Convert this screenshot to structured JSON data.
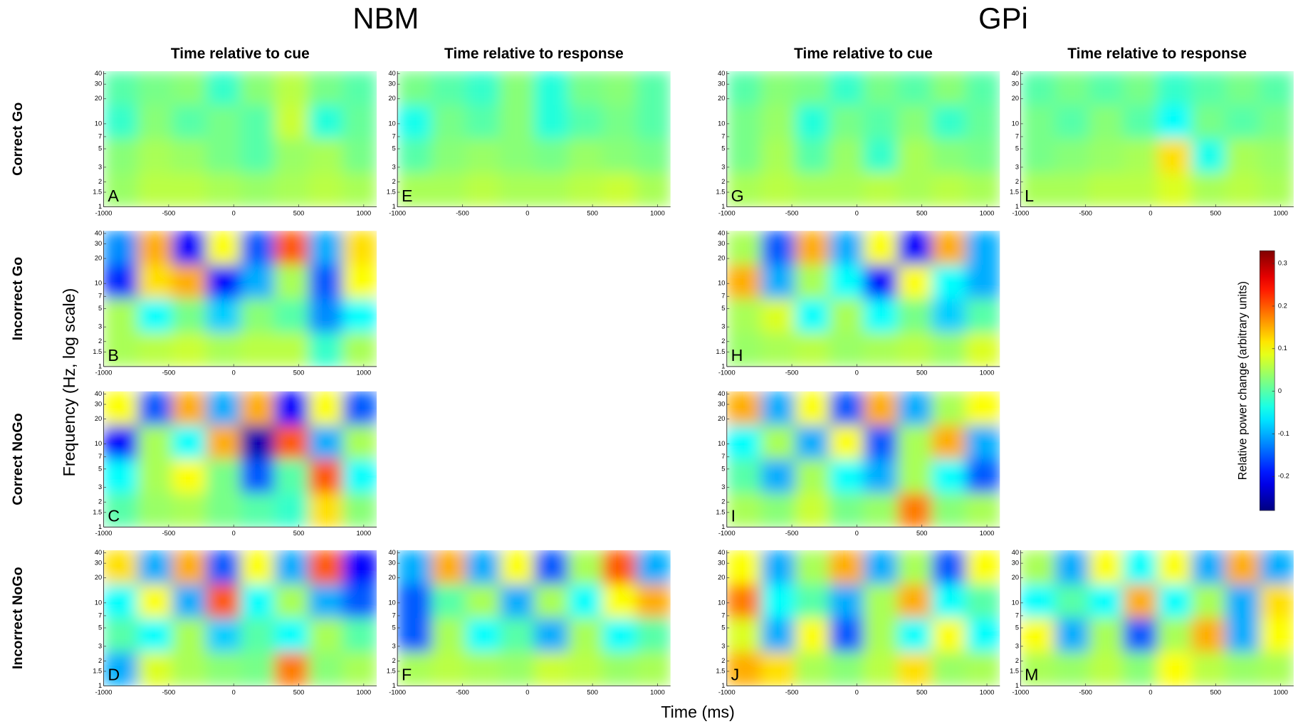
{
  "chart_data": {
    "type": "heatmap-grid",
    "groups": [
      {
        "name": "NBM",
        "columns": [
          {
            "title": "Time relative to cue",
            "panels": [
              {
                "label": "A",
                "values": [
                  [
                    0,
                    0.02,
                    0.03,
                    -0.02,
                    0.03,
                    0.06,
                    0.02,
                    0
                  ],
                  [
                    -0.02,
                    0.03,
                    0,
                    0.02,
                    0,
                    0.07,
                    -0.03,
                    0.01
                  ],
                  [
                    0.03,
                    0.05,
                    0.04,
                    0.02,
                    0,
                    0.04,
                    0.05,
                    0.02
                  ],
                  [
                    0.04,
                    0.06,
                    0.06,
                    0.05,
                    0.04,
                    0.05,
                    0.06,
                    0.05
                  ]
                ]
              },
              {
                "label": "B",
                "values": [
                  [
                    -0.12,
                    0.15,
                    -0.2,
                    0.1,
                    -0.15,
                    0.2,
                    -0.1,
                    0.12
                  ],
                  [
                    -0.18,
                    0.12,
                    0.15,
                    -0.2,
                    -0.1,
                    0.05,
                    -0.15,
                    0.1
                  ],
                  [
                    0.05,
                    -0.05,
                    0.02,
                    -0.08,
                    0.03,
                    0,
                    -0.12,
                    -0.05
                  ],
                  [
                    0.05,
                    0.06,
                    0.07,
                    0.05,
                    0.06,
                    0.06,
                    -0.02,
                    0.05
                  ]
                ]
              },
              {
                "label": "C",
                "values": [
                  [
                    0.1,
                    -0.15,
                    0.15,
                    -0.1,
                    0.15,
                    -0.2,
                    0.1,
                    -0.15
                  ],
                  [
                    -0.2,
                    0.05,
                    -0.05,
                    0.15,
                    -0.25,
                    0.2,
                    -0.1,
                    0.05
                  ],
                  [
                    -0.05,
                    0.05,
                    0.1,
                    0.02,
                    -0.15,
                    0,
                    0.2,
                    -0.05
                  ],
                  [
                    0,
                    0.04,
                    0.05,
                    0.02,
                    0,
                    -0.02,
                    0.12,
                    0.03
                  ]
                ]
              },
              {
                "label": "D",
                "values": [
                  [
                    0.12,
                    -0.1,
                    0.15,
                    -0.15,
                    0.1,
                    -0.1,
                    0.2,
                    -0.2
                  ],
                  [
                    -0.05,
                    0.1,
                    -0.1,
                    0.2,
                    -0.05,
                    0.05,
                    -0.1,
                    -0.15
                  ],
                  [
                    0,
                    -0.05,
                    0.05,
                    -0.08,
                    0,
                    -0.05,
                    0.05,
                    0
                  ],
                  [
                    -0.1,
                    0.08,
                    0.05,
                    0.03,
                    0.02,
                    0.18,
                    0.03,
                    0.05
                  ]
                ]
              }
            ]
          },
          {
            "title": "Time relative to response",
            "panels": [
              {
                "label": "E",
                "values": [
                  [
                    0.02,
                    0,
                    -0.02,
                    0.03,
                    -0.03,
                    0.02,
                    0.03,
                    0
                  ],
                  [
                    -0.04,
                    0.02,
                    0,
                    0.03,
                    -0.03,
                    0,
                    0.02,
                    0
                  ],
                  [
                    0,
                    0.03,
                    0.04,
                    0.03,
                    0.02,
                    0.04,
                    0.03,
                    0.02
                  ],
                  [
                    0.05,
                    0.05,
                    0.06,
                    0.05,
                    0.05,
                    0.06,
                    0.07,
                    0.05
                  ]
                ]
              },
              null,
              null,
              {
                "label": "F",
                "values": [
                  [
                    -0.1,
                    0.15,
                    -0.1,
                    0.1,
                    -0.15,
                    0.05,
                    0.2,
                    -0.1
                  ],
                  [
                    -0.15,
                    0,
                    0.05,
                    -0.1,
                    0.05,
                    -0.05,
                    0.1,
                    0.15
                  ],
                  [
                    -0.15,
                    0.05,
                    -0.05,
                    0,
                    -0.1,
                    0.05,
                    -0.05,
                    0
                  ],
                  [
                    0.05,
                    0.06,
                    0.05,
                    0.04,
                    0.07,
                    0.06,
                    0.04,
                    0.05
                  ]
                ]
              }
            ]
          }
        ]
      },
      {
        "name": "GPi",
        "columns": [
          {
            "title": "Time relative to cue",
            "panels": [
              {
                "label": "G",
                "values": [
                  [
                    0,
                    0.03,
                    0.02,
                    -0.02,
                    0.02,
                    0,
                    0.03,
                    0
                  ],
                  [
                    0.02,
                    0.04,
                    -0.03,
                    0.02,
                    0,
                    0.03,
                    -0.02,
                    0.01
                  ],
                  [
                    0.02,
                    0.05,
                    0,
                    0.04,
                    -0.02,
                    0.05,
                    0.03,
                    0.02
                  ],
                  [
                    0.05,
                    0.06,
                    0.05,
                    0.05,
                    0.06,
                    0.05,
                    0.06,
                    0.05
                  ]
                ]
              },
              {
                "label": "H",
                "values": [
                  [
                    0.05,
                    -0.15,
                    0.15,
                    -0.1,
                    0.1,
                    -0.2,
                    0.15,
                    -0.1
                  ],
                  [
                    0.15,
                    -0.1,
                    0.05,
                    -0.05,
                    -0.2,
                    0.1,
                    -0.05,
                    -0.1
                  ],
                  [
                    0.05,
                    0.08,
                    -0.05,
                    0.05,
                    -0.05,
                    0.02,
                    -0.08,
                    0
                  ],
                  [
                    0.04,
                    0.05,
                    0.06,
                    0.04,
                    0.05,
                    0.06,
                    0.04,
                    0.08
                  ]
                ]
              },
              {
                "label": "I",
                "values": [
                  [
                    0.15,
                    -0.1,
                    0.1,
                    -0.15,
                    0.15,
                    -0.1,
                    0.05,
                    0.1
                  ],
                  [
                    -0.05,
                    0.05,
                    -0.1,
                    0.1,
                    -0.15,
                    0.05,
                    0.15,
                    -0.1
                  ],
                  [
                    0,
                    -0.1,
                    0.05,
                    -0.05,
                    -0.1,
                    0.05,
                    -0.05,
                    -0.15
                  ],
                  [
                    0.05,
                    0.03,
                    0.07,
                    0.02,
                    0.04,
                    0.18,
                    0.03,
                    0.05
                  ]
                ]
              },
              {
                "label": "J",
                "values": [
                  [
                    0.1,
                    -0.1,
                    0.05,
                    0.15,
                    -0.1,
                    0.05,
                    -0.15,
                    0.1
                  ],
                  [
                    0.18,
                    -0.05,
                    0,
                    -0.1,
                    0.05,
                    0.15,
                    -0.05,
                    0
                  ],
                  [
                    0.08,
                    -0.1,
                    0.1,
                    -0.15,
                    0.05,
                    -0.05,
                    0.1,
                    -0.05
                  ],
                  [
                    0.15,
                    0.12,
                    0.05,
                    0.03,
                    0.06,
                    0.12,
                    0.04,
                    0.05
                  ]
                ]
              }
            ]
          },
          {
            "title": "Time relative to response",
            "panels": [
              {
                "label": "L",
                "values": [
                  [
                    0,
                    0.02,
                    0,
                    0.02,
                    -0.02,
                    0,
                    0.02,
                    0
                  ],
                  [
                    0.02,
                    0,
                    0.03,
                    0,
                    -0.05,
                    0.02,
                    0,
                    0.02
                  ],
                  [
                    0.02,
                    0.03,
                    0.04,
                    0.05,
                    0.12,
                    -0.04,
                    0.05,
                    0.04
                  ],
                  [
                    0.05,
                    0.05,
                    0.06,
                    0.06,
                    0.08,
                    0.05,
                    0.06,
                    0.05
                  ]
                ]
              },
              null,
              null,
              {
                "label": "M",
                "values": [
                  [
                    0.05,
                    -0.1,
                    0.1,
                    -0.05,
                    0.1,
                    -0.1,
                    0.15,
                    -0.1
                  ],
                  [
                    -0.05,
                    0,
                    -0.05,
                    0.15,
                    -0.05,
                    0.05,
                    -0.1,
                    0.12
                  ],
                  [
                    0.1,
                    -0.1,
                    0.05,
                    -0.15,
                    0.05,
                    0.15,
                    -0.1,
                    0.1
                  ],
                  [
                    0.05,
                    0.04,
                    0.06,
                    0.03,
                    0.1,
                    0.06,
                    0.04,
                    0.05
                  ]
                ]
              }
            ]
          }
        ]
      }
    ],
    "rows": [
      "Correct Go",
      "Incorrect Go",
      "Correct NoGo",
      "Incorrect NoGo"
    ],
    "xlabel": "Time (ms)",
    "ylabel": "Frequency (Hz, log scale)",
    "xlim": [
      -1000,
      1100
    ],
    "xticks": [
      -1000,
      -500,
      0,
      500,
      1000
    ],
    "ylim": [
      1,
      43
    ],
    "yticks": [
      1,
      1.5,
      2,
      3,
      5,
      7,
      10,
      20,
      30,
      40
    ],
    "ylog": true,
    "colormap": "jet",
    "colorbar": {
      "label": "Relative power change (arbitrary units)",
      "clim": [
        -0.28,
        0.33
      ],
      "ticks": [
        0.3,
        0.2,
        0.1,
        0,
        -0.1,
        -0.2
      ]
    }
  }
}
